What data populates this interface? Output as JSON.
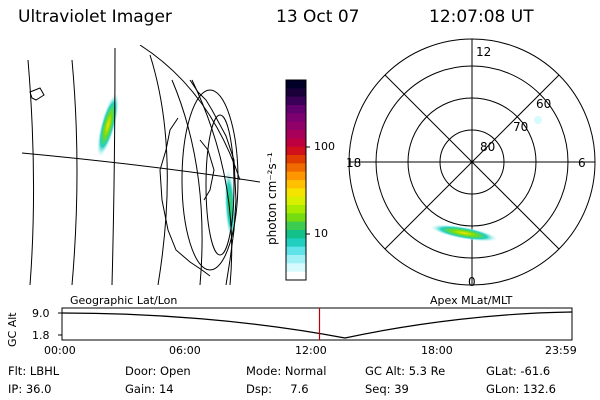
{
  "header": {
    "title": "Ultraviolet Imager",
    "date": "13 Oct 07",
    "time": "12:07:08 UT"
  },
  "colorbar": {
    "unit_label": "photon cm⁻²s⁻¹",
    "ticks": [
      "100",
      "10"
    ],
    "colors": [
      "#000028",
      "#1a0038",
      "#3a0058",
      "#62006e",
      "#7c0070",
      "#92006a",
      "#a8005a",
      "#be0040",
      "#d0101a",
      "#e03c00",
      "#f06a00",
      "#ff9600",
      "#ffc000",
      "#f4e400",
      "#d6f000",
      "#a8ea00",
      "#74dc10",
      "#3ccc50",
      "#14c08a",
      "#20cfc0",
      "#60e2e8",
      "#a0f0f6",
      "#d6fafd",
      "#ffffff"
    ]
  },
  "polar": {
    "lat_labels": [
      "60",
      "70",
      "80"
    ],
    "mlt_labels": [
      "12",
      "18",
      "6",
      "0"
    ]
  },
  "orbit": {
    "left_label": "Geographic Lat/Lon",
    "right_label": "Apex MLat/MLT",
    "axis_label": "GC Alt",
    "y_ticks": [
      "9.0",
      "1.8"
    ],
    "x_ticks": [
      "00:00",
      "06:00",
      "12:00",
      "18:00",
      "23:59"
    ],
    "current_fraction": 0.5049,
    "marker_color": "#c00000"
  },
  "info": {
    "row1": [
      "Flt: LBHL",
      "Door: Open",
      "Mode: Normal",
      "GC Alt: 5.3 Re",
      "GLat: -61.6"
    ],
    "row2": [
      "IP: 36.0",
      "Gain: 14",
      "Dsp:     7.6",
      "Seq: 39",
      "GLon: 132.6"
    ]
  }
}
